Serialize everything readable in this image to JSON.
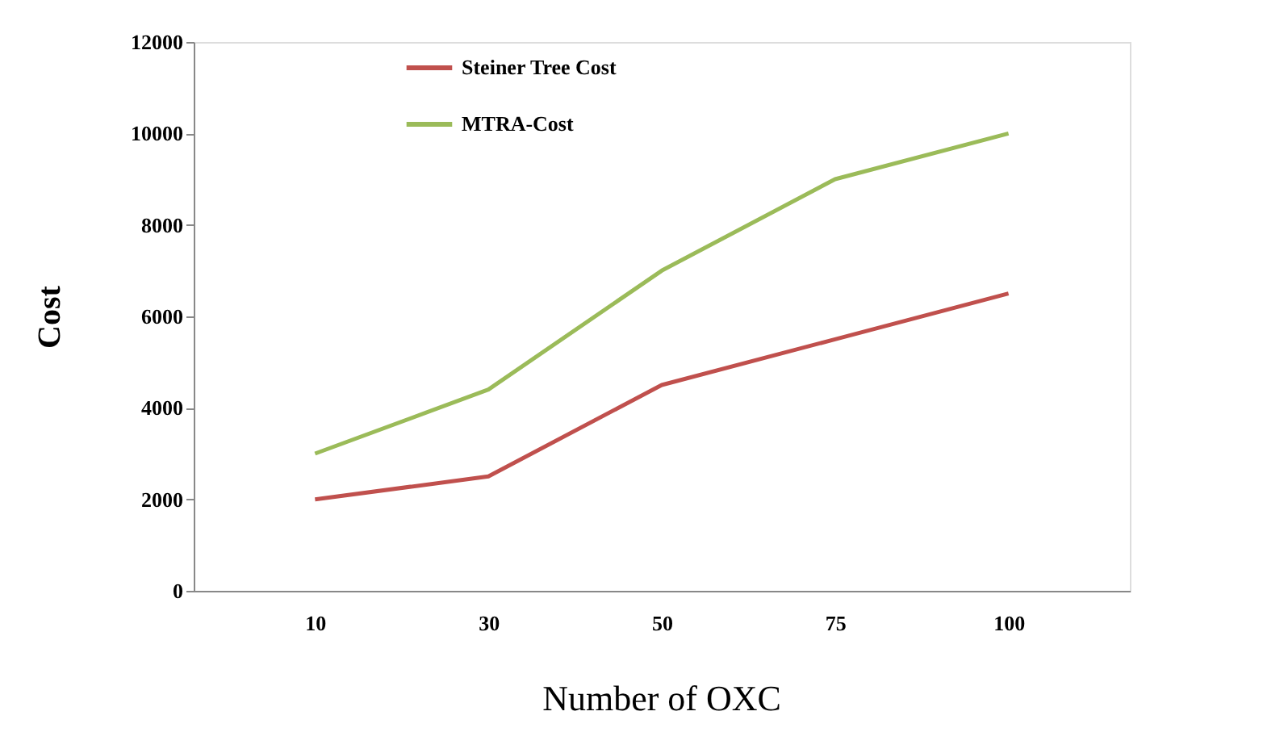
{
  "chart_data": {
    "type": "line",
    "xlabel": "Number of OXC",
    "ylabel": "Cost",
    "categories": [
      "10",
      "30",
      "50",
      "75",
      "100"
    ],
    "series": [
      {
        "name": "Steiner Tree  Cost",
        "color": "#c0504d",
        "values": [
          2000,
          2500,
          4500,
          5500,
          6500
        ]
      },
      {
        "name": "MTRA-Cost",
        "color": "#9bbb59",
        "values": [
          3000,
          4400,
          7000,
          9000,
          10000
        ]
      }
    ],
    "ylim": [
      0,
      12000
    ],
    "yticks": [
      0,
      2000,
      4000,
      6000,
      8000,
      10000,
      12000
    ],
    "grid": false,
    "legend": "top",
    "marker": "none",
    "line_style": "solid"
  }
}
